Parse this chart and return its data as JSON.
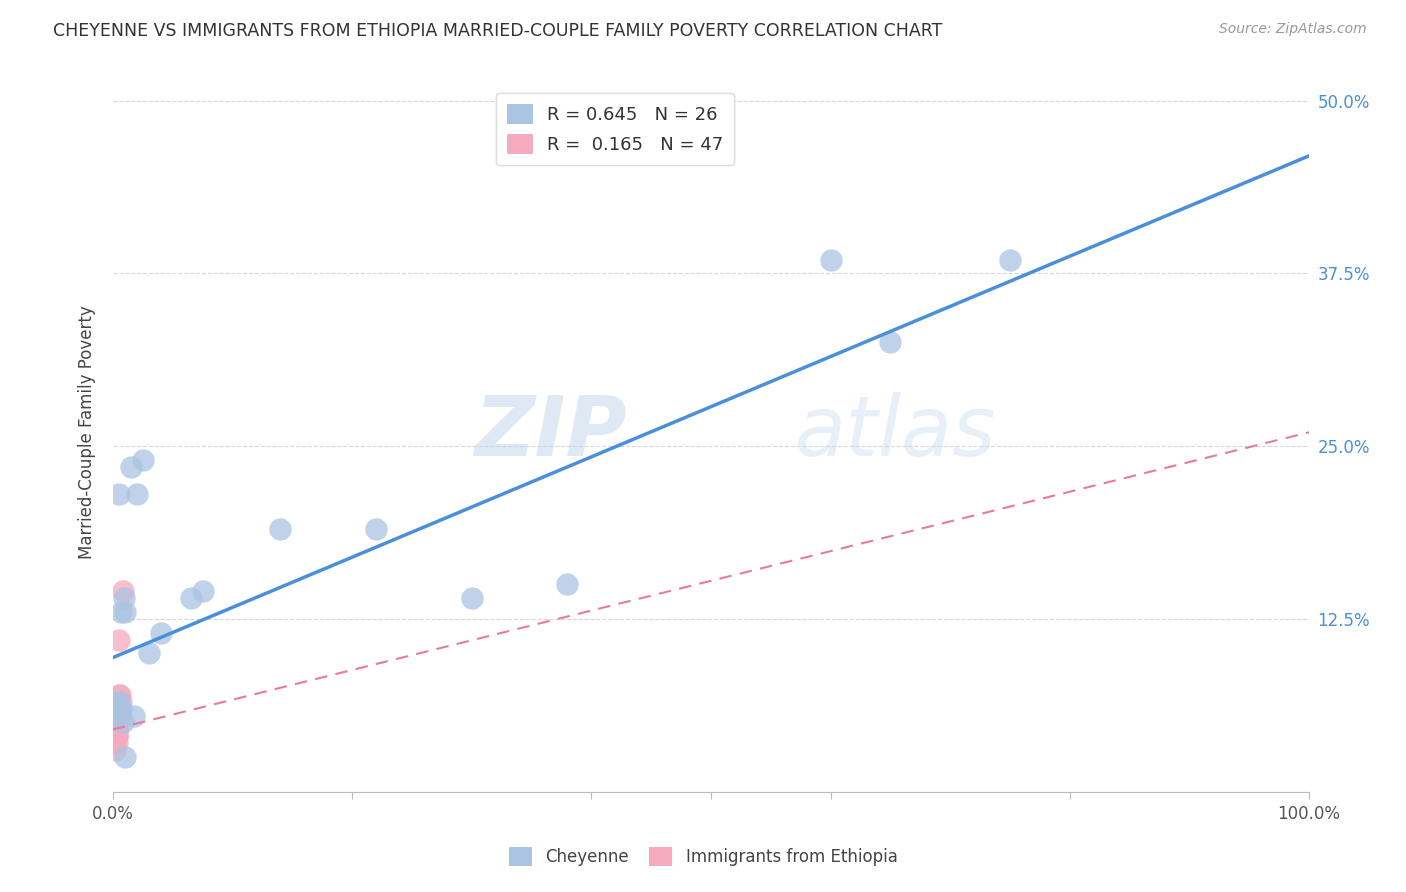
{
  "title": "CHEYENNE VS IMMIGRANTS FROM ETHIOPIA MARRIED-COUPLE FAMILY POVERTY CORRELATION CHART",
  "source": "Source: ZipAtlas.com",
  "ylabel": "Married-Couple Family Poverty",
  "cheyenne_R": 0.645,
  "cheyenne_N": 26,
  "ethiopia_R": 0.165,
  "ethiopia_N": 47,
  "cheyenne_color": "#aac4e2",
  "ethiopia_color": "#f5aabe",
  "cheyenne_line_color": "#4a90d9",
  "ethiopia_line_color": "#e87b9a",
  "cheyenne_scatter_x": [
    0.02,
    0.015,
    0.025,
    0.005,
    0.007,
    0.009,
    0.01,
    0.22,
    0.065,
    0.075,
    0.03,
    0.04,
    0.3,
    0.38,
    0.6,
    0.75,
    0.65,
    0.005,
    0.007,
    0.003,
    0.003,
    0.006,
    0.008,
    0.14,
    0.018,
    0.01
  ],
  "cheyenne_scatter_y": [
    0.215,
    0.235,
    0.24,
    0.215,
    0.13,
    0.14,
    0.13,
    0.19,
    0.14,
    0.145,
    0.1,
    0.115,
    0.14,
    0.15,
    0.385,
    0.385,
    0.325,
    0.065,
    0.06,
    0.065,
    0.055,
    0.06,
    0.05,
    0.19,
    0.055,
    0.025
  ],
  "ethiopia_scatter_x": [
    0.003,
    0.004,
    0.005,
    0.003,
    0.002,
    0.003,
    0.004,
    0.003,
    0.006,
    0.005,
    0.006,
    0.007,
    0.008,
    0.003,
    0.002,
    0.002,
    0.003,
    0.004,
    0.005,
    0.003,
    0.002,
    0.002,
    0.002,
    0.003,
    0.003,
    0.004,
    0.004,
    0.002,
    0.003,
    0.003,
    0.002,
    0.002,
    0.002,
    0.003,
    0.004,
    0.003,
    0.002,
    0.002,
    0.003,
    0.003,
    0.002,
    0.002,
    0.003,
    0.003,
    0.004,
    0.003,
    0.002
  ],
  "ethiopia_scatter_y": [
    0.055,
    0.06,
    0.055,
    0.04,
    0.04,
    0.04,
    0.055,
    0.045,
    0.055,
    0.11,
    0.07,
    0.065,
    0.145,
    0.055,
    0.045,
    0.04,
    0.05,
    0.06,
    0.07,
    0.045,
    0.04,
    0.04,
    0.045,
    0.05,
    0.05,
    0.06,
    0.055,
    0.03,
    0.045,
    0.035,
    0.045,
    0.04,
    0.045,
    0.05,
    0.055,
    0.05,
    0.04,
    0.035,
    0.05,
    0.055,
    0.04,
    0.04,
    0.05,
    0.05,
    0.055,
    0.04,
    0.04
  ],
  "watermark_zip": "ZIP",
  "watermark_atlas": "atlas",
  "background_color": "#ffffff",
  "grid_color": "#cccccc",
  "xlim": [
    0.0,
    1.0
  ],
  "ylim": [
    0.0,
    0.52
  ],
  "cheyenne_line_x0": 0.0,
  "cheyenne_line_y0": 0.097,
  "cheyenne_line_x1": 1.0,
  "cheyenne_line_y1": 0.46,
  "ethiopia_line_x0": 0.0,
  "ethiopia_line_y0": 0.045,
  "ethiopia_line_x1": 1.0,
  "ethiopia_line_y1": 0.26
}
